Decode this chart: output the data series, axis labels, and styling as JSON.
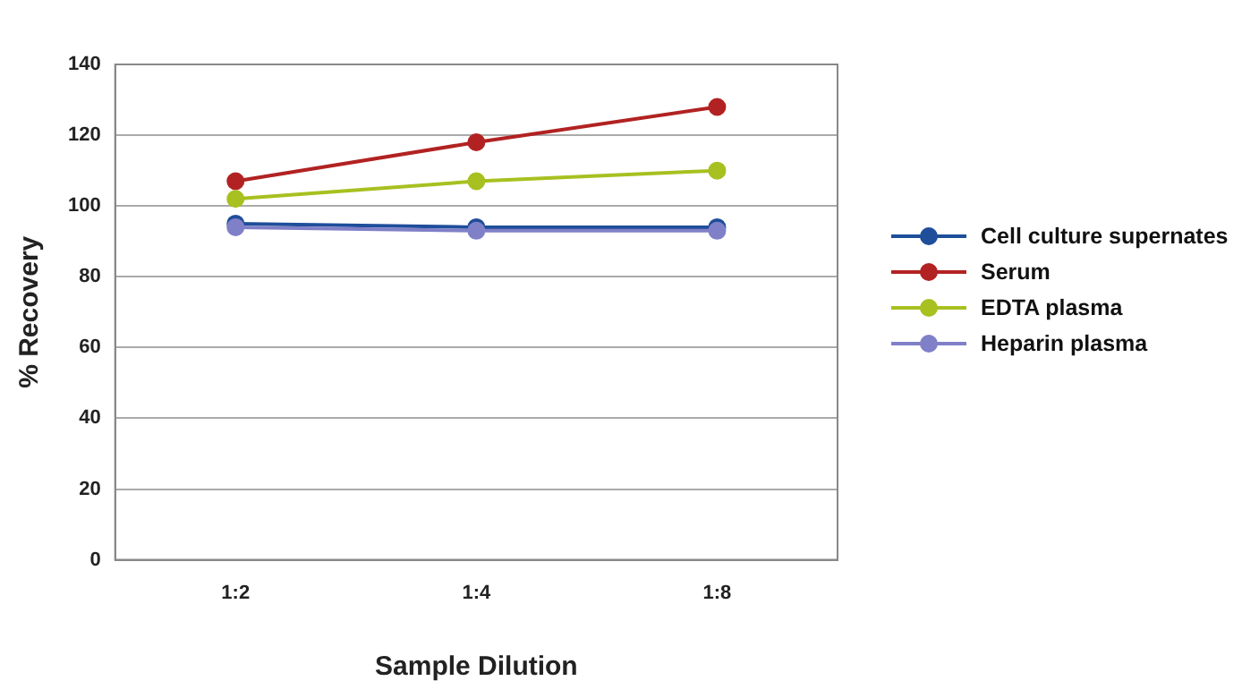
{
  "chart_data": {
    "type": "line",
    "xlabel": "Sample Dilution",
    "ylabel": "% Recovery",
    "categories": [
      "1:2",
      "1:4",
      "1:8"
    ],
    "series": [
      {
        "name": "Cell culture supernates",
        "color": "#1f4e9a",
        "values": [
          95,
          94,
          94
        ]
      },
      {
        "name": "Serum",
        "color": "#b22222",
        "values": [
          107,
          118,
          128
        ]
      },
      {
        "name": "EDTA plasma",
        "color": "#a8c020",
        "values": [
          102,
          107,
          110
        ]
      },
      {
        "name": "Heparin plasma",
        "color": "#8080c8",
        "values": [
          94,
          93,
          93
        ]
      }
    ],
    "ylim": [
      0,
      140
    ],
    "yticks": [
      0,
      20,
      40,
      60,
      80,
      100,
      120,
      140
    ],
    "grid": "y",
    "legend": "right",
    "marker": "circle",
    "line_style": "solid"
  }
}
